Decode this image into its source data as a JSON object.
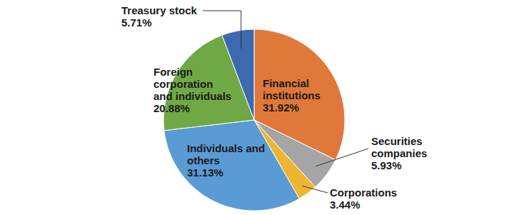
{
  "chart_data": {
    "type": "pie",
    "categories": [
      "Financial institutions",
      "Securities companies",
      "Corporations",
      "Individuals and others",
      "Foreign corporation and individuals",
      "Treasury stock"
    ],
    "values": [
      31.92,
      5.93,
      3.44,
      31.13,
      20.88,
      5.71
    ],
    "value_labels": [
      "31.92%",
      "5.93%",
      "3.44%",
      "31.13%",
      "20.88%",
      "5.71%"
    ],
    "colors": [
      "#e0783a",
      "#a5a5a5",
      "#edb630",
      "#5b9bd5",
      "#70a845",
      "#3e69b0"
    ],
    "data_labels": true
  }
}
